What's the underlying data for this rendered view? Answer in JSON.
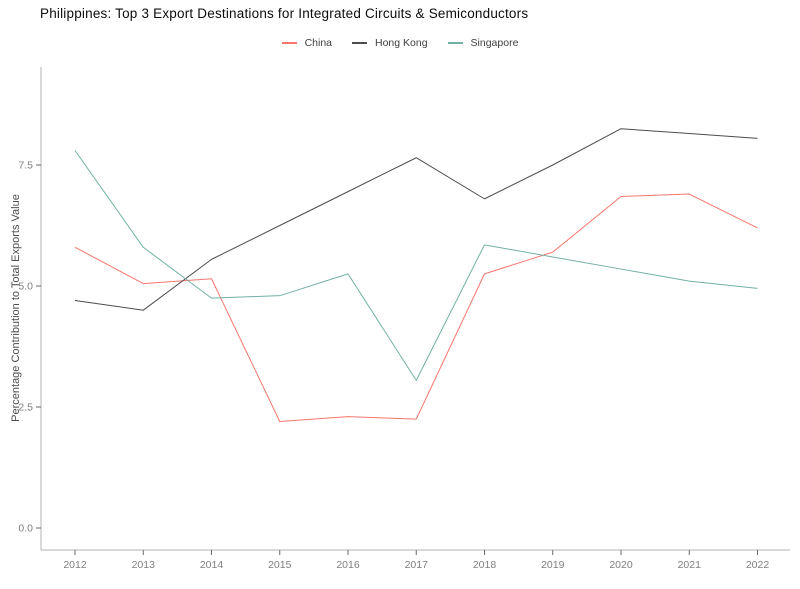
{
  "chart_data": {
    "type": "line",
    "title": "Philippines: Top 3 Export Destinations for Integrated Circuits & Semiconductors",
    "xlabel": "",
    "ylabel": "Percentage Contribution to Total Exports Value",
    "x": [
      2012,
      2013,
      2014,
      2015,
      2016,
      2017,
      2018,
      2019,
      2020,
      2021,
      2022
    ],
    "series": [
      {
        "name": "China",
        "color": "#f8766d",
        "values": [
          5.8,
          5.05,
          5.15,
          2.2,
          2.3,
          2.25,
          5.25,
          5.7,
          6.85,
          6.9,
          6.2
        ]
      },
      {
        "name": "Hong Kong",
        "color": "#4d4d4d",
        "values": [
          4.7,
          4.5,
          5.55,
          6.25,
          6.95,
          7.65,
          6.8,
          7.5,
          8.25,
          8.15,
          8.05
        ]
      },
      {
        "name": "Singapore",
        "color": "#72b0a5",
        "values": [
          7.8,
          5.8,
          4.75,
          4.8,
          5.25,
          3.05,
          5.85,
          5.6,
          5.35,
          5.1,
          4.95
        ]
      }
    ],
    "yticks": [
      0,
      2.5,
      5,
      7.5
    ],
    "ytick_labels": [
      "0.0",
      "2.5",
      "5.0",
      "7.5"
    ],
    "xtick_labels": [
      "2012",
      "2013",
      "2014",
      "2015",
      "2016",
      "2017",
      "2018",
      "2019",
      "2020",
      "2021",
      "2022"
    ],
    "ylim": [
      0,
      9.5
    ],
    "grid": false,
    "legend_position": "top-center",
    "axis_line_color": "#b3b3b3",
    "tick_mark_color": "#696969"
  }
}
